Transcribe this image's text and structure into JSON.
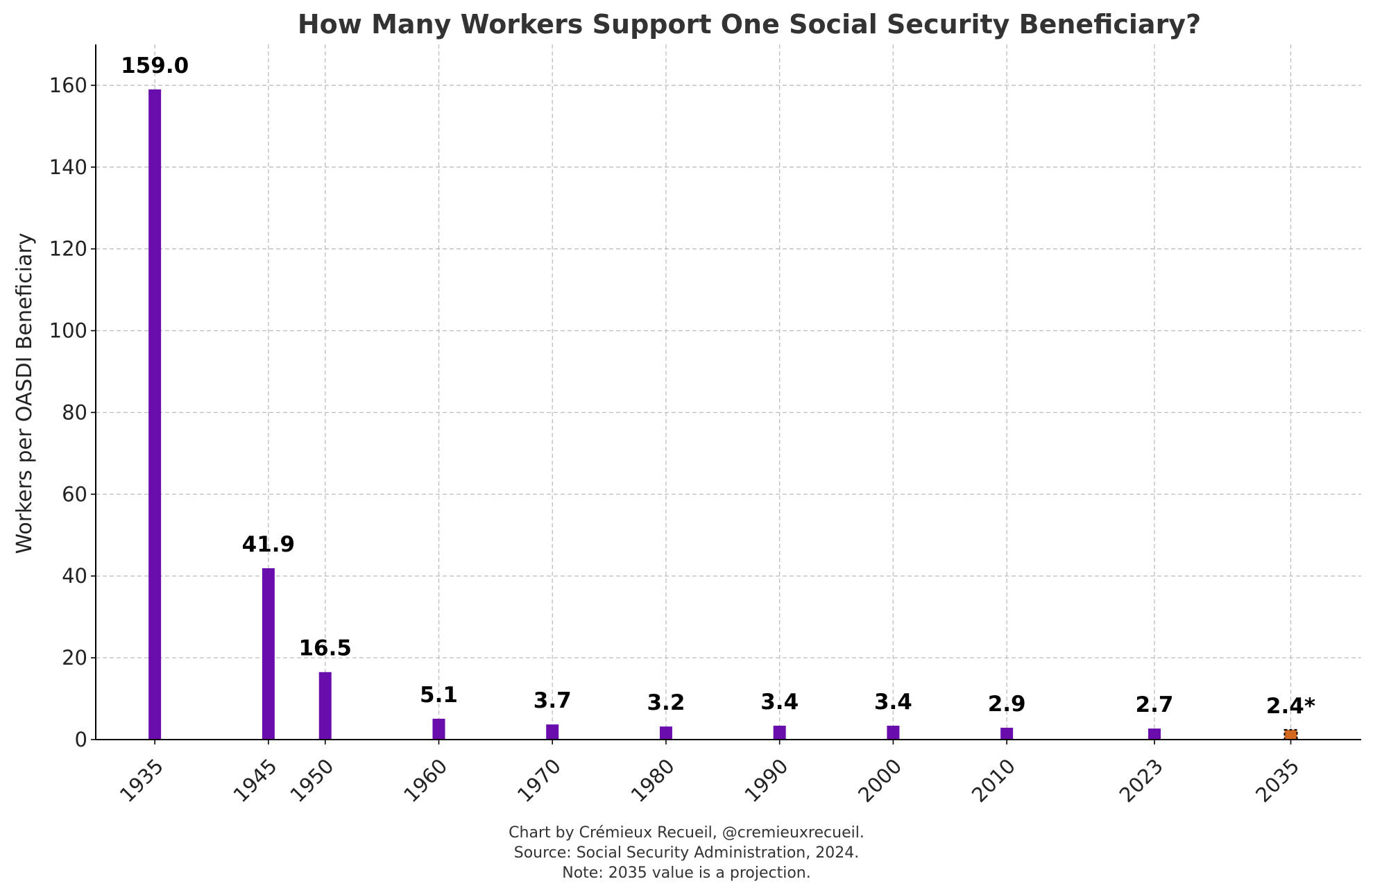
{
  "chart_data": {
    "type": "bar",
    "title": "How Many Workers Support One Social Security Beneficiary?",
    "xlabel": "",
    "ylabel": "Workers per OASDI Beneficiary",
    "ylim": [
      0,
      170
    ],
    "yticks": [
      0,
      20,
      40,
      60,
      80,
      100,
      120,
      140,
      160
    ],
    "xlim": [
      1929.8,
      2041.2
    ],
    "grid": true,
    "categories": [
      "1935",
      "1945",
      "1950",
      "1960",
      "1970",
      "1980",
      "1990",
      "2000",
      "2010",
      "2023",
      "2035"
    ],
    "x": [
      1935,
      1945,
      1950,
      1960,
      1970,
      1980,
      1990,
      2000,
      2010,
      2023,
      2035
    ],
    "values": [
      159.0,
      41.9,
      16.5,
      5.1,
      3.7,
      3.2,
      3.4,
      3.4,
      2.9,
      2.7,
      2.4
    ],
    "data_labels": [
      "159.0",
      "41.9",
      "16.5",
      "5.1",
      "3.7",
      "3.2",
      "3.4",
      "3.4",
      "2.9",
      "2.7",
      "2.4*"
    ],
    "bar_colors": [
      "#6a0dad",
      "#6a0dad",
      "#6a0dad",
      "#6a0dad",
      "#6a0dad",
      "#6a0dad",
      "#6a0dad",
      "#6a0dad",
      "#6a0dad",
      "#6a0dad",
      "#d2691e"
    ],
    "projected": [
      false,
      false,
      false,
      false,
      false,
      false,
      false,
      false,
      false,
      false,
      true
    ]
  },
  "caption": {
    "line1": "Chart by Crémieux Recueil, @cremieuxrecueil.",
    "line2": "Source: Social Security Administration, 2024.",
    "line3": "Note: 2035 value is a projection."
  }
}
